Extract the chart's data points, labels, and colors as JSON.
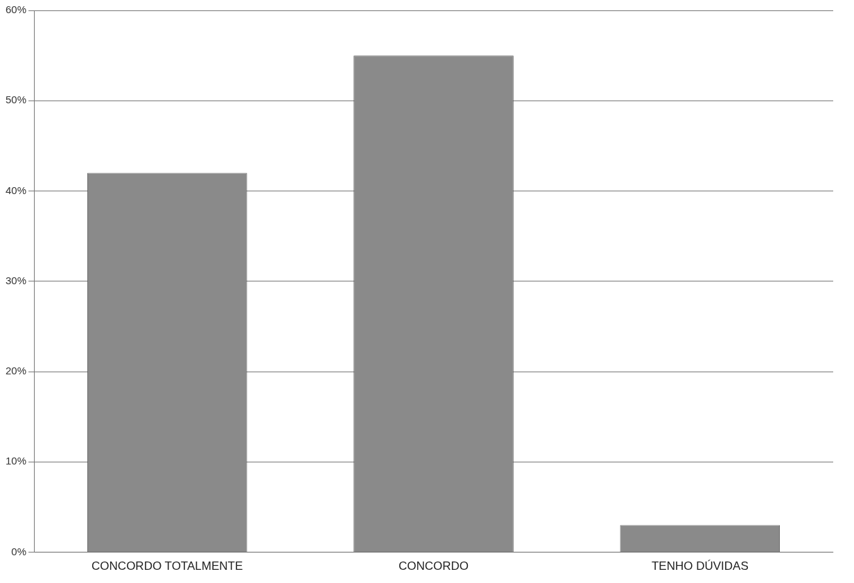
{
  "chart_data": {
    "type": "bar",
    "categories": [
      "CONCORDO TOTALMENTE",
      "CONCORDO",
      "TENHO DÚVIDAS"
    ],
    "values": [
      42,
      55,
      3
    ],
    "color": "#8a8a8a",
    "ylim": [
      0,
      60
    ],
    "yticks": [
      {
        "value": 0,
        "label": "0%"
      },
      {
        "value": 10,
        "label": "10%"
      },
      {
        "value": 20,
        "label": "20%"
      },
      {
        "value": 30,
        "label": "30%"
      },
      {
        "value": 40,
        "label": "40%"
      },
      {
        "value": 50,
        "label": "50%"
      },
      {
        "value": 60,
        "label": "60%"
      }
    ],
    "grid": "y",
    "legend": false
  }
}
